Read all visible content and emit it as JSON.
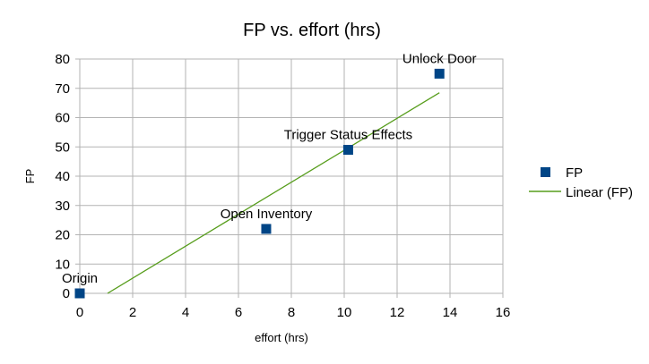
{
  "chart_data": {
    "type": "scatter",
    "title": "FP vs. effort (hrs)",
    "xlabel": "effort (hrs)",
    "ylabel": "FP",
    "xlim": [
      0,
      16
    ],
    "ylim": [
      0,
      80
    ],
    "xticks": [
      0,
      2,
      4,
      6,
      8,
      10,
      12,
      14,
      16
    ],
    "yticks": [
      0,
      10,
      20,
      30,
      40,
      50,
      60,
      70,
      80
    ],
    "grid": true,
    "legend_position": "right",
    "series": [
      {
        "name": "FP",
        "color": "#004586",
        "marker": "square",
        "points": [
          {
            "label": "Origin",
            "x": 0,
            "y": 0
          },
          {
            "label": "Open Inventory",
            "x": 7.05,
            "y": 22
          },
          {
            "label": "Trigger Status Effects",
            "x": 10.15,
            "y": 49
          },
          {
            "label": "Unlock Door",
            "x": 13.6,
            "y": 75
          }
        ]
      }
    ],
    "trendline": {
      "name": "Linear (FP)",
      "type": "linear",
      "color": "#579d1c",
      "x_start": 1.05,
      "x_end": 13.6,
      "y_start": 0,
      "y_end": 68.5
    }
  }
}
